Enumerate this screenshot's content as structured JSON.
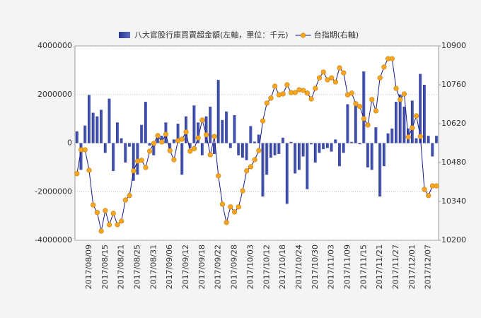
{
  "chart_data": {
    "type": "bar_line",
    "categories": [
      null,
      null,
      null,
      "2017/08/09",
      null,
      null,
      null,
      "2017/08/15",
      null,
      null,
      null,
      "2017/08/21",
      null,
      null,
      null,
      "2017/08/25",
      null,
      null,
      null,
      "2017/08/31",
      null,
      null,
      null,
      "2017/09/06",
      null,
      null,
      null,
      "2017/09/12",
      null,
      null,
      null,
      "2017/09/18",
      null,
      null,
      null,
      "2017/09/22",
      null,
      null,
      null,
      "2017/09/28",
      null,
      null,
      null,
      "2017/10/03",
      null,
      null,
      null,
      "2017/10/12",
      null,
      null,
      null,
      "2017/10/18",
      null,
      null,
      null,
      "2017/10/24",
      null,
      null,
      null,
      "2017/10/30",
      null,
      null,
      null,
      "2017/11/03",
      null,
      null,
      null,
      "2017/11/09",
      null,
      null,
      null,
      "2017/11/15",
      null,
      null,
      null,
      "2017/11/21",
      null,
      null,
      null,
      "2017/11/27",
      null,
      null,
      null,
      "2017/12/01",
      null,
      null,
      null,
      "2017/12/07",
      null,
      null
    ],
    "series": [
      {
        "name": "八大官股行庫買賣超金額(左軸，單位：千元)",
        "type": "bar",
        "color": "#283593",
        "values": [
          480000,
          -1100000,
          720000,
          1980000,
          1250000,
          1100000,
          1370000,
          -400000,
          1830000,
          -1150000,
          850000,
          200000,
          -800000,
          -150000,
          -1550000,
          -1300000,
          750000,
          1700000,
          -100000,
          -500000,
          250000,
          300000,
          850000,
          -400000,
          150000,
          800000,
          -1300000,
          1100000,
          -200000,
          1550000,
          850000,
          -500000,
          1100000,
          1500000,
          -450000,
          2600000,
          950000,
          1300000,
          -200000,
          1150000,
          -500000,
          -600000,
          -700000,
          700000,
          60000,
          350000,
          -2200000,
          -1300000,
          -600000,
          -500000,
          -450000,
          220000,
          -2500000,
          50000,
          -1250000,
          -1100000,
          -550000,
          -1900000,
          -50000,
          -800000,
          -400000,
          -250000,
          -200000,
          -350000,
          150000,
          -950000,
          -400000,
          1600000,
          50000,
          1600000,
          -50000,
          2950000,
          -1000000,
          -1100000,
          650000,
          -2200000,
          -950000,
          400000,
          600000,
          1700000,
          2000000,
          1500000,
          600000,
          1750000,
          200000,
          2850000,
          2400000,
          300000,
          -550000,
          300000
        ]
      },
      {
        "name": "台指期(右軸)",
        "type": "line",
        "axis": "y2",
        "color": "#1a1a8c",
        "marker_color": "#f5a623",
        "values": [
          10440,
          10526,
          10526,
          10452,
          10327,
          10300,
          10233,
          10307,
          10256,
          10297,
          10256,
          10269,
          10345,
          10361,
          10450,
          10485,
          10488,
          10462,
          10521,
          10549,
          10577,
          10554,
          10582,
          10523,
          10490,
          10559,
          10564,
          10590,
          10521,
          10530,
          10569,
          10633,
          10580,
          10508,
          10574,
          10432,
          10330,
          10264,
          10320,
          10302,
          10320,
          10378,
          10450,
          10465,
          10490,
          10523,
          10630,
          10694,
          10712,
          10755,
          10724,
          10727,
          10760,
          10732,
          10732,
          10742,
          10740,
          10730,
          10709,
          10747,
          10785,
          10806,
          10778,
          10785,
          10770,
          10821,
          10803,
          10724,
          10730,
          10692,
          10682,
          10638,
          10615,
          10707,
          10666,
          10785,
          10824,
          10854,
          10854,
          10747,
          10707,
          10727,
          10572,
          10605,
          10648,
          10574,
          10383,
          10361,
          10396,
          10396
        ]
      }
    ],
    "ylim": [
      -4000000,
      4000000
    ],
    "yticks": [
      -4000000,
      -2000000,
      0,
      2000000,
      4000000
    ],
    "y2lim": [
      10200,
      10900
    ],
    "y2ticks": [
      10200,
      10340,
      10480,
      10620,
      10760,
      10900
    ],
    "grid": true,
    "legend": "top"
  }
}
